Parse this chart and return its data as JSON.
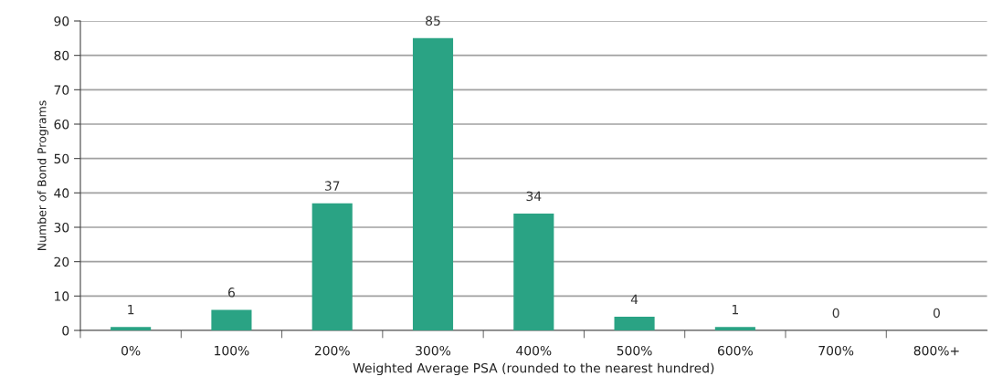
{
  "chart_data": {
    "type": "bar",
    "xlabel": "Weighted Average PSA (rounded to the nearest hundred)",
    "ylabel": "Number of Bond Programs",
    "categories": [
      "0%",
      "100%",
      "200%",
      "300%",
      "400%",
      "500%",
      "600%",
      "700%",
      "800%+"
    ],
    "values": [
      1,
      6,
      37,
      85,
      34,
      4,
      1,
      0,
      0
    ],
    "color": "#2aa384",
    "ylim": [
      0,
      90
    ],
    "yticks": [
      0,
      10,
      20,
      30,
      40,
      50,
      60,
      70,
      80,
      90
    ],
    "grid": "y",
    "data_labels": true,
    "legend": false
  }
}
